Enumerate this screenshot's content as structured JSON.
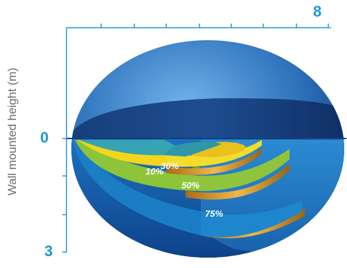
{
  "axis": {
    "y_label": "Wall mounted height (m)",
    "y_min_label": "0",
    "y_max_label": "3",
    "x_max_label": "8"
  },
  "zones": [
    {
      "label": "10%",
      "color": "#36a4b2"
    },
    {
      "label": "30%",
      "color": "#f1d21a"
    },
    {
      "label": "50%",
      "color": "#8fc53c"
    },
    {
      "label": "75%",
      "color": "#1e82c6"
    }
  ],
  "colors": {
    "axis": "#1f97d6",
    "dome_dark": "#0c2f66",
    "dome_light": "#4f9be0",
    "gold": "#c8922a"
  }
}
